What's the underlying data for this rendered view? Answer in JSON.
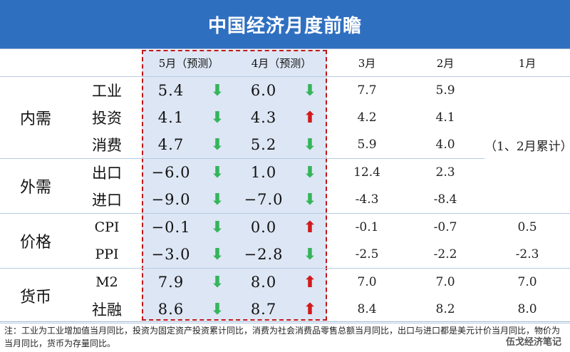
{
  "title": "中国经济月度前瞻",
  "columns": [
    "5月（预测）",
    "4月（预测）",
    "3月",
    "2月",
    "1月"
  ],
  "cumulative_note": "（1、2月累计）",
  "groups": [
    {
      "name": "内需",
      "rows": [
        {
          "label": "工业",
          "may": "5.4",
          "may_dir": "down",
          "apr": "6.0",
          "apr_dir": "down",
          "mar": "7.7",
          "feb": "5.9",
          "jan": ""
        },
        {
          "label": "投资",
          "may": "4.1",
          "may_dir": "down",
          "apr": "4.3",
          "apr_dir": "up",
          "mar": "4.2",
          "feb": "4.1",
          "jan": ""
        },
        {
          "label": "消费",
          "may": "4.7",
          "may_dir": "down",
          "apr": "5.2",
          "apr_dir": "down",
          "mar": "5.9",
          "feb": "4.0",
          "jan": ""
        }
      ]
    },
    {
      "name": "外需",
      "rows": [
        {
          "label": "出口",
          "may": "−6.0",
          "may_dir": "down",
          "apr": "1.0",
          "apr_dir": "down",
          "mar": "12.4",
          "feb": "2.3",
          "jan": ""
        },
        {
          "label": "进口",
          "may": "−9.0",
          "may_dir": "down",
          "apr": "−7.0",
          "apr_dir": "down",
          "mar": "-4.3",
          "feb": "-8.4",
          "jan": ""
        }
      ]
    },
    {
      "name": "价格",
      "rows": [
        {
          "label": "CPI",
          "may": "−0.1",
          "may_dir": "down",
          "apr": "0.0",
          "apr_dir": "up",
          "mar": "-0.1",
          "feb": "-0.7",
          "jan": "0.5"
        },
        {
          "label": "PPI",
          "may": "−3.0",
          "may_dir": "down",
          "apr": "−2.8",
          "apr_dir": "down",
          "mar": "-2.5",
          "feb": "-2.2",
          "jan": "-2.3"
        }
      ]
    },
    {
      "name": "货币",
      "rows": [
        {
          "label": "M2",
          "may": "7.9",
          "may_dir": "down",
          "apr": "8.0",
          "apr_dir": "up",
          "mar": "7.0",
          "feb": "7.0",
          "jan": "7.0"
        },
        {
          "label": "社融",
          "may": "8.6",
          "may_dir": "down",
          "apr": "8.7",
          "apr_dir": "up",
          "mar": "8.4",
          "feb": "8.2",
          "jan": "8.0"
        }
      ]
    }
  ],
  "arrows": {
    "down": "⬇",
    "up": "⬆"
  },
  "colors": {
    "header_bg": "#2f6fc0",
    "highlight_bg": "#dde6f4",
    "highlight_border": "#c01818",
    "down": "#34b55a",
    "up": "#d11b1b"
  },
  "footnote": "注：工业为工业增加值当月同比，投资为固定资产投资累计同比，消费为社会消费品零售总额当月同比，出口与进口都是美元计价当月同比，物价为当月同比，货币为存量同比。",
  "watermark": "伍戈经济笔记"
}
